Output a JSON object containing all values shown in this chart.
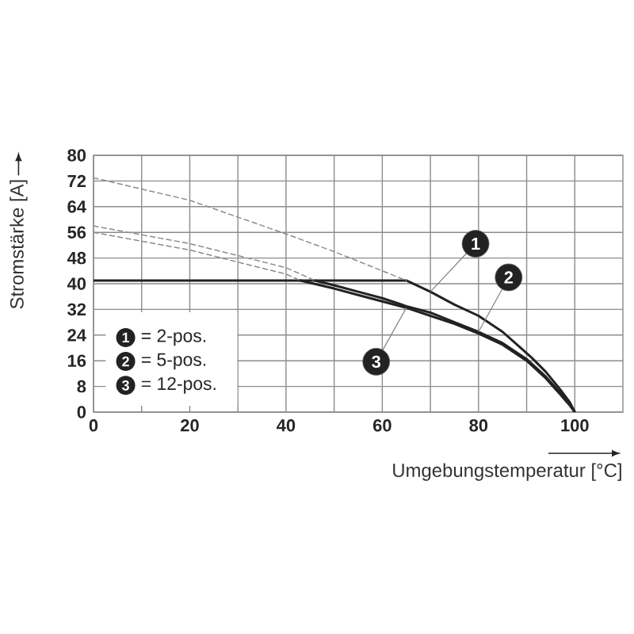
{
  "chart_data": {
    "type": "line",
    "xlabel": "Umgebungstemperatur [°C]",
    "ylabel": "Stromstärke [A]",
    "xlim": [
      0,
      110
    ],
    "ylim": [
      0,
      80
    ],
    "xticks": [
      0,
      {
        "value": 10,
        "label": null
      },
      20,
      {
        "value": 30,
        "label": null
      },
      40,
      {
        "value": 50,
        "label": null
      },
      60,
      {
        "value": 70,
        "label": null
      },
      80,
      {
        "value": 90,
        "label": null
      },
      100
    ],
    "yticks": [
      0,
      8,
      16,
      24,
      32,
      40,
      48,
      56,
      64,
      72,
      80
    ],
    "grid": true,
    "legend": "bottom left",
    "annotations": [
      "= 2-pos.",
      "= 5-pos.",
      "= 12-pos."
    ],
    "series": [
      {
        "name": "1",
        "color": "#222222",
        "x": [
          0,
          65,
          70,
          75,
          80,
          85,
          88,
          91,
          94,
          97,
          99,
          100
        ],
        "values": [
          41,
          41,
          37.5,
          33.5,
          30,
          25,
          21,
          17,
          12.5,
          7,
          3,
          0
        ]
      },
      {
        "name": "2",
        "color": "#222222",
        "x": [
          46,
          50,
          55,
          60,
          65,
          70,
          75,
          80,
          85,
          90,
          94,
          97,
          99,
          100
        ],
        "values": [
          41,
          39.5,
          37.5,
          35.5,
          33,
          31,
          28,
          25,
          21.5,
          16.5,
          11,
          6,
          2.5,
          0
        ]
      },
      {
        "name": "3",
        "color": "#222222",
        "x": [
          43,
          50,
          55,
          60,
          65,
          70,
          75,
          80,
          85,
          90,
          94,
          97,
          99,
          100
        ],
        "values": [
          41,
          38.5,
          36.5,
          34.5,
          32.5,
          30,
          27.5,
          24.5,
          21,
          16,
          10.5,
          5.5,
          2,
          0
        ]
      },
      {
        "color": "#8c8c8c",
        "line_style": "dashed",
        "x": [
          0,
          20,
          40,
          50,
          65
        ],
        "values": [
          73,
          66,
          55.5,
          50,
          41
        ]
      },
      {
        "color": "#8c8c8c",
        "line_style": "dashed",
        "x": [
          0,
          20,
          40,
          46
        ],
        "values": [
          58,
          52.5,
          45,
          41
        ]
      },
      {
        "color": "#8c8c8c",
        "line_style": "dashed",
        "x": [
          0,
          20,
          40,
          43
        ],
        "values": [
          56,
          50.5,
          43,
          41
        ]
      }
    ]
  }
}
